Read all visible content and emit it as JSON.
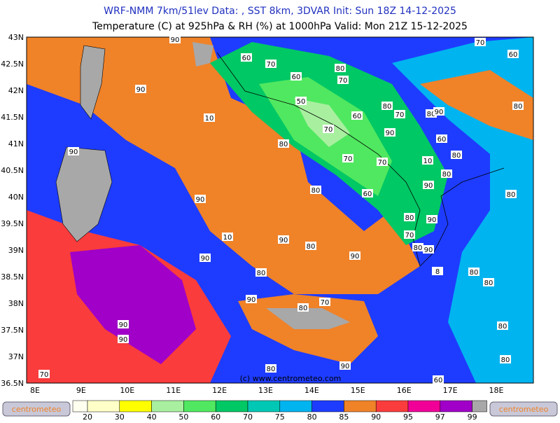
{
  "header": {
    "line1": "WRF-NMM 7km/51lev   Data: , SST 8km, 3DVAR   Init: Sun 18Z 14-12-2025",
    "line2": "Temperature (C) at 925hPa & RH (%) at 1000hPa  Valid: Mon 21Z 15-12-2025"
  },
  "map": {
    "lon_labels": [
      "8E",
      "9E",
      "10E",
      "11E",
      "12E",
      "13E",
      "14E",
      "15E",
      "16E",
      "17E",
      "18E"
    ],
    "lat_labels": [
      "43N",
      "42.5N",
      "42N",
      "41.5N",
      "41N",
      "40.5N",
      "40N",
      "39.5N",
      "39N",
      "38.5N",
      "38N",
      "37.5N",
      "37N",
      "36.5N"
    ],
    "watermark": "(c) www.centrometeo.com",
    "contour_labels": [
      "90",
      "60",
      "70",
      "60",
      "80",
      "70",
      "90",
      "50",
      "60",
      "80",
      "70",
      "80",
      "90",
      "80",
      "10",
      "70",
      "90",
      "60",
      "80",
      "90",
      "80",
      "70",
      "70",
      "10",
      "80",
      "80",
      "60",
      "90",
      "80",
      "90",
      "80",
      "90",
      "10",
      "70",
      "90",
      "80",
      "80",
      "90",
      "90",
      "90",
      "8",
      "80",
      "80",
      "80",
      "70",
      "90",
      "80",
      "90",
      "80",
      "90",
      "90",
      "80",
      "80",
      "70",
      "60",
      "70",
      "60"
    ]
  },
  "legend": {
    "levels": [
      "20",
      "30",
      "40",
      "50",
      "60",
      "70",
      "75",
      "80",
      "85",
      "90",
      "95",
      "97",
      "99"
    ],
    "colors": [
      "#ffffc8",
      "#ffff00",
      "#a8f0a0",
      "#50e860",
      "#00c864",
      "#00c8b4",
      "#00b4f0",
      "#1e3cff",
      "#f08228",
      "#fa3c3c",
      "#f00096",
      "#a000c8"
    ],
    "logo_left": "centrometeo",
    "logo_right": "centrometeo"
  }
}
